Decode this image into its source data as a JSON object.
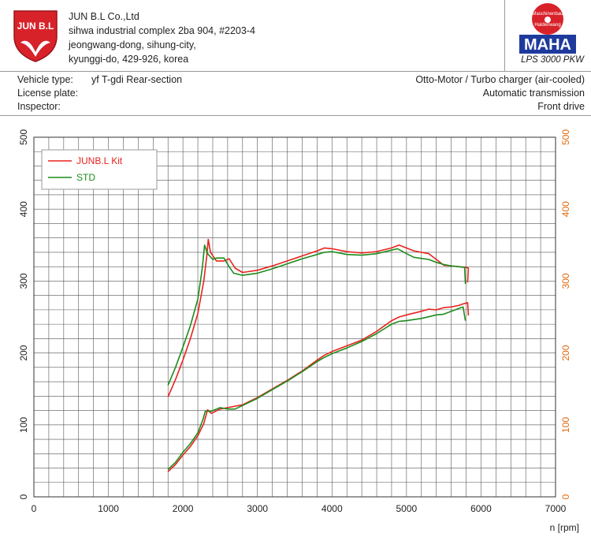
{
  "company": {
    "name": "JUN B.L Co.,Ltd",
    "address_lines": [
      "sihwa industrial complex 2ba 904, #2203-4",
      "jeongwang-dong, sihung-city,",
      "kyunggi-do, 429-926, korea"
    ],
    "logo_text": "JUN B.L"
  },
  "brand": {
    "badge_top": "Maschinenbau",
    "badge_bottom": "Haldenwang",
    "name": "MAHA",
    "model": "LPS 3000 PKW"
  },
  "vehicle": {
    "type_label": "Vehicle type:",
    "type_value": "yf T-gdi Rear-section",
    "plate_label": "License plate:",
    "plate_value": "",
    "inspector_label": "Inspector:",
    "inspector_value": "",
    "engine": "Otto-Motor / Turbo charger (air-cooled)",
    "transmission": "Automatic transmission",
    "drive": "Front drive"
  },
  "colors": {
    "kit": "#e8231e",
    "std": "#1c8c1c",
    "right_axis": "#e06a10",
    "grid": "#555555"
  },
  "chart_data": {
    "type": "line",
    "xlabel": "n [rpm]",
    "xlim": [
      0,
      7000
    ],
    "ylim": [
      0,
      500
    ],
    "x_ticks": [
      0,
      1000,
      2000,
      3000,
      4000,
      5000,
      6000,
      7000
    ],
    "y_ticks": [
      0,
      100,
      200,
      300,
      400,
      500
    ],
    "legend": {
      "placement": "top-left"
    },
    "grid": true,
    "series": [
      {
        "name": "JUNB.L Kit",
        "color": "#e8231e",
        "curve": "upper",
        "points": [
          [
            1800,
            139
          ],
          [
            1900,
            163
          ],
          [
            2000,
            190
          ],
          [
            2100,
            220
          ],
          [
            2200,
            255
          ],
          [
            2280,
            300
          ],
          [
            2320,
            335
          ],
          [
            2340,
            358
          ],
          [
            2370,
            340
          ],
          [
            2450,
            328
          ],
          [
            2550,
            328
          ],
          [
            2620,
            331
          ],
          [
            2700,
            318
          ],
          [
            2800,
            312
          ],
          [
            3000,
            315
          ],
          [
            3200,
            321
          ],
          [
            3400,
            328
          ],
          [
            3600,
            335
          ],
          [
            3800,
            342
          ],
          [
            3900,
            346
          ],
          [
            4000,
            345
          ],
          [
            4200,
            341
          ],
          [
            4400,
            339
          ],
          [
            4600,
            341
          ],
          [
            4800,
            346
          ],
          [
            4900,
            350
          ],
          [
            4950,
            348
          ],
          [
            5100,
            342
          ],
          [
            5300,
            338
          ],
          [
            5400,
            330
          ],
          [
            5500,
            322
          ],
          [
            5600,
            321
          ],
          [
            5700,
            320
          ],
          [
            5800,
            319
          ],
          [
            5830,
            318
          ],
          [
            5820,
            298
          ]
        ]
      },
      {
        "name": "STD",
        "color": "#1c8c1c",
        "curve": "upper",
        "points": [
          [
            1800,
            155
          ],
          [
            1900,
            180
          ],
          [
            2000,
            208
          ],
          [
            2100,
            238
          ],
          [
            2200,
            275
          ],
          [
            2260,
            318
          ],
          [
            2290,
            350
          ],
          [
            2330,
            338
          ],
          [
            2400,
            330
          ],
          [
            2450,
            332
          ],
          [
            2550,
            332
          ],
          [
            2620,
            320
          ],
          [
            2680,
            311
          ],
          [
            2800,
            308
          ],
          [
            3000,
            311
          ],
          [
            3200,
            317
          ],
          [
            3400,
            324
          ],
          [
            3600,
            331
          ],
          [
            3800,
            337
          ],
          [
            3900,
            340
          ],
          [
            4000,
            341
          ],
          [
            4200,
            337
          ],
          [
            4400,
            336
          ],
          [
            4600,
            338
          ],
          [
            4800,
            343
          ],
          [
            4880,
            345
          ],
          [
            5000,
            338
          ],
          [
            5100,
            333
          ],
          [
            5300,
            330
          ],
          [
            5400,
            326
          ],
          [
            5500,
            323
          ],
          [
            5600,
            321
          ],
          [
            5700,
            320
          ],
          [
            5780,
            319
          ],
          [
            5790,
            296
          ]
        ]
      },
      {
        "name": "JUNB.L Kit",
        "color": "#e8231e",
        "curve": "lower",
        "points": [
          [
            1800,
            35
          ],
          [
            1900,
            45
          ],
          [
            2000,
            58
          ],
          [
            2100,
            70
          ],
          [
            2200,
            85
          ],
          [
            2280,
            102
          ],
          [
            2330,
            121
          ],
          [
            2380,
            116
          ],
          [
            2500,
            122
          ],
          [
            2600,
            124
          ],
          [
            2800,
            128
          ],
          [
            3000,
            138
          ],
          [
            3200,
            150
          ],
          [
            3400,
            162
          ],
          [
            3600,
            175
          ],
          [
            3800,
            190
          ],
          [
            3900,
            197
          ],
          [
            4000,
            202
          ],
          [
            4200,
            210
          ],
          [
            4400,
            218
          ],
          [
            4600,
            230
          ],
          [
            4800,
            245
          ],
          [
            4900,
            250
          ],
          [
            5000,
            253
          ],
          [
            5200,
            258
          ],
          [
            5300,
            261
          ],
          [
            5400,
            260
          ],
          [
            5500,
            263
          ],
          [
            5600,
            264
          ],
          [
            5700,
            266
          ],
          [
            5750,
            268
          ],
          [
            5820,
            270
          ],
          [
            5830,
            252
          ]
        ]
      },
      {
        "name": "STD",
        "color": "#1c8c1c",
        "curve": "lower",
        "points": [
          [
            1800,
            38
          ],
          [
            1900,
            48
          ],
          [
            2000,
            62
          ],
          [
            2100,
            74
          ],
          [
            2200,
            89
          ],
          [
            2270,
            108
          ],
          [
            2300,
            119
          ],
          [
            2380,
            119
          ],
          [
            2500,
            124
          ],
          [
            2600,
            122
          ],
          [
            2700,
            122
          ],
          [
            2800,
            127
          ],
          [
            3000,
            137
          ],
          [
            3200,
            149
          ],
          [
            3400,
            161
          ],
          [
            3600,
            174
          ],
          [
            3800,
            188
          ],
          [
            3900,
            194
          ],
          [
            4000,
            199
          ],
          [
            4200,
            207
          ],
          [
            4400,
            216
          ],
          [
            4600,
            227
          ],
          [
            4800,
            240
          ],
          [
            4900,
            244
          ],
          [
            5000,
            245
          ],
          [
            5200,
            248
          ],
          [
            5400,
            253
          ],
          [
            5500,
            254
          ],
          [
            5600,
            258
          ],
          [
            5700,
            262
          ],
          [
            5760,
            264
          ],
          [
            5790,
            245
          ]
        ]
      }
    ]
  }
}
